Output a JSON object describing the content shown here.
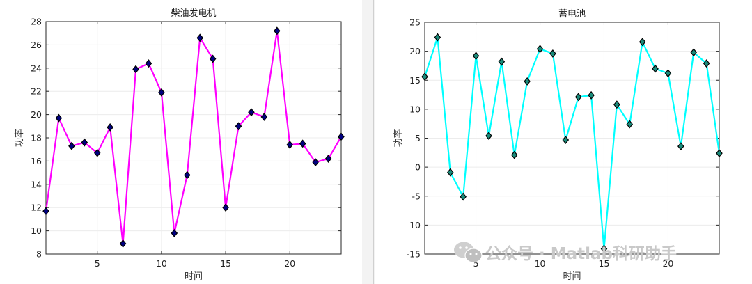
{
  "chart_data": [
    {
      "type": "line",
      "title": "柴油发电机",
      "xlabel": "时间",
      "ylabel": "功率",
      "xlim": [
        1,
        24
      ],
      "ylim": [
        8,
        28
      ],
      "xticks": [
        5,
        10,
        15,
        20
      ],
      "yticks": [
        8,
        10,
        12,
        14,
        16,
        18,
        20,
        22,
        24,
        26,
        28
      ],
      "grid": true,
      "line_color": "#ff00ff",
      "marker_color": "#000080",
      "marker": "diamond",
      "series": [
        {
          "x": [
            1,
            2,
            3,
            4,
            5,
            6,
            7,
            8,
            9,
            10,
            11,
            12,
            13,
            14,
            15,
            16,
            17,
            18,
            19,
            20,
            21,
            22,
            23,
            24
          ],
          "values": [
            11.7,
            19.7,
            17.3,
            17.6,
            16.7,
            18.9,
            8.9,
            23.9,
            24.4,
            21.9,
            9.8,
            14.8,
            26.6,
            24.8,
            12.0,
            19.0,
            20.2,
            19.8,
            27.2,
            17.4,
            17.5,
            15.9,
            16.2,
            18.1
          ]
        }
      ]
    },
    {
      "type": "line",
      "title": "蓄电池",
      "xlabel": "时间",
      "ylabel": "功率",
      "xlim": [
        1,
        24
      ],
      "ylim": [
        -15,
        25
      ],
      "xticks": [
        5,
        10,
        15,
        20
      ],
      "yticks": [
        -15,
        -10,
        -5,
        0,
        5,
        10,
        15,
        20,
        25
      ],
      "grid": true,
      "line_color": "#00ffff",
      "marker_color": "#1a8a7a",
      "marker": "diamond",
      "series": [
        {
          "x": [
            1,
            2,
            3,
            4,
            5,
            6,
            7,
            8,
            9,
            10,
            11,
            12,
            13,
            14,
            15,
            16,
            17,
            18,
            19,
            20,
            21,
            22,
            23,
            24
          ],
          "values": [
            15.6,
            22.4,
            -0.9,
            -5.1,
            19.2,
            5.4,
            18.2,
            2.1,
            14.8,
            20.4,
            19.6,
            4.7,
            12.1,
            12.4,
            -14.1,
            10.8,
            7.4,
            21.6,
            17.0,
            16.2,
            3.6,
            19.8,
            17.9,
            2.4
          ]
        }
      ]
    }
  ],
  "watermark": {
    "text": "公众号 · Matlab科研助手",
    "icon": "wechat-icon"
  }
}
